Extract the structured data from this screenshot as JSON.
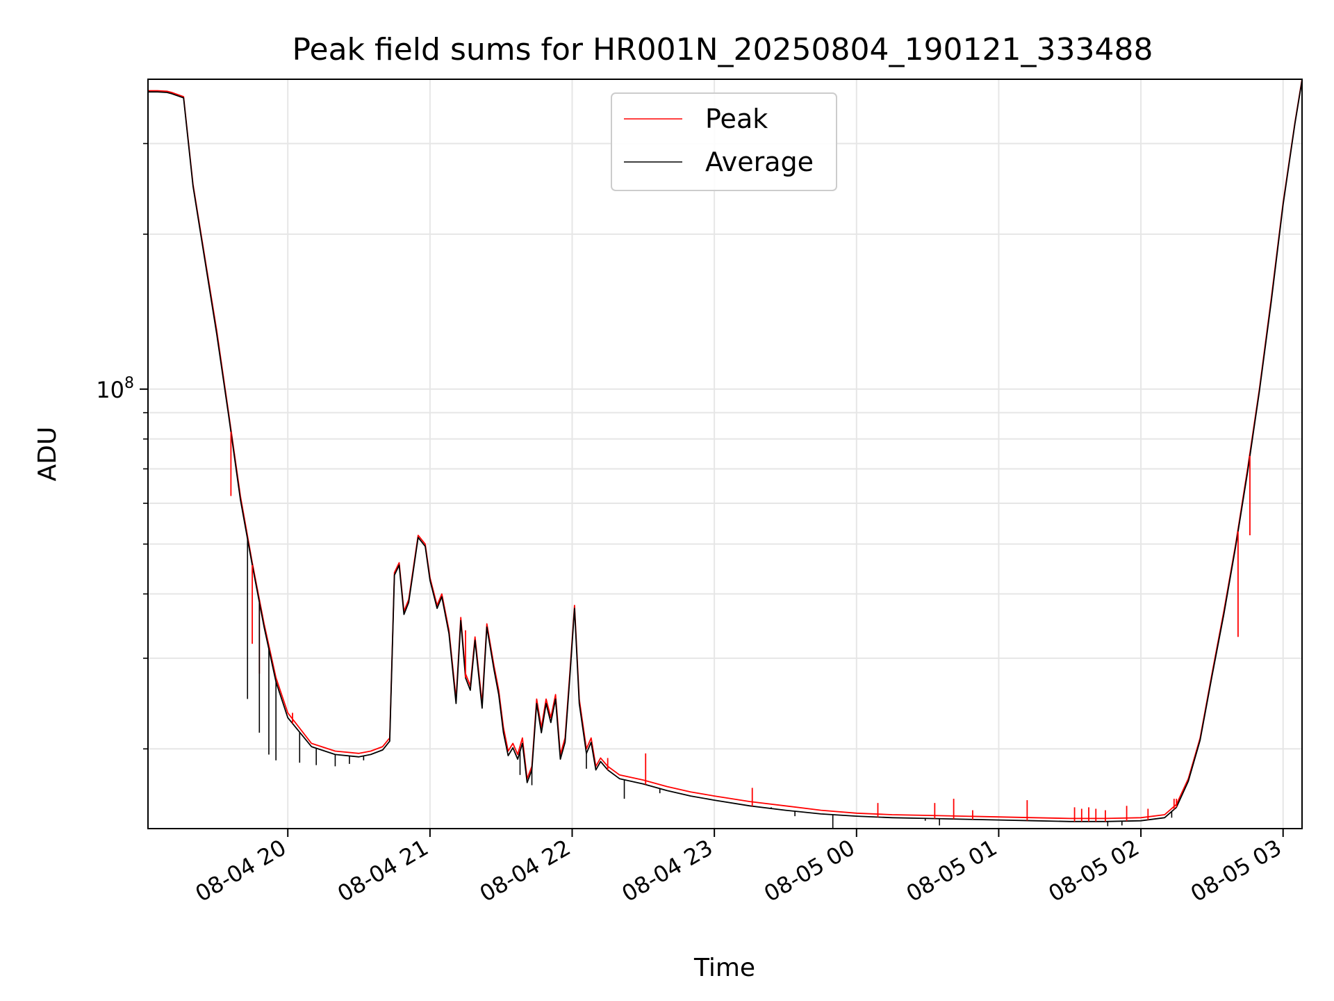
{
  "chart_data": {
    "type": "line",
    "title": "Peak field sums for HR001N_20250804_190121_333488",
    "xlabel": "Time",
    "ylabel": "ADU",
    "y_scale": "log",
    "grid": true,
    "legend_placement": "upper center",
    "x_range": [
      "08-04 19:01",
      "08-05 03:08"
    ],
    "y_range": [
      14000000,
      400000000
    ],
    "x_ticks": [
      {
        "time": "08-04 20:00",
        "label": "08-04 20"
      },
      {
        "time": "08-04 21:00",
        "label": "08-04 21"
      },
      {
        "time": "08-04 22:00",
        "label": "08-04 22"
      },
      {
        "time": "08-04 23:00",
        "label": "08-04 23"
      },
      {
        "time": "08-05 00:00",
        "label": "08-05 00"
      },
      {
        "time": "08-05 01:00",
        "label": "08-05 01"
      },
      {
        "time": "08-05 02:00",
        "label": "08-05 02"
      },
      {
        "time": "08-05 03:00",
        "label": "08-05 03"
      }
    ],
    "y_major_ticks": [
      {
        "value": 100000000,
        "base": "10",
        "exp": "8"
      }
    ],
    "y_minor_ticks": [
      20000000,
      30000000,
      40000000,
      50000000,
      60000000,
      70000000,
      80000000,
      90000000,
      200000000,
      300000000
    ],
    "series": [
      {
        "name": "Peak",
        "color": "#ff0000",
        "x": [
          "08-04 19:01",
          "08-04 19:05",
          "08-04 19:09",
          "08-04 19:11",
          "08-04 19:16",
          "08-04 19:20",
          "08-04 19:25",
          "08-04 19:30",
          "08-04 19:35",
          "08-04 19:40",
          "08-04 19:45",
          "08-04 19:50",
          "08-04 19:55",
          "08-04 20:00",
          "08-04 20:10",
          "08-04 20:20",
          "08-04 20:30",
          "08-04 20:35",
          "08-04 20:40",
          "08-04 20:43",
          "08-04 20:45",
          "08-04 20:47",
          "08-04 20:49",
          "08-04 20:51",
          "08-04 20:53",
          "08-04 20:55",
          "08-04 20:58",
          "08-04 21:00",
          "08-04 21:03",
          "08-04 21:05",
          "08-04 21:08",
          "08-04 21:11",
          "08-04 21:13",
          "08-04 21:15",
          "08-04 21:17",
          "08-04 21:19",
          "08-04 21:22",
          "08-04 21:24",
          "08-04 21:27",
          "08-04 21:29",
          "08-04 21:31",
          "08-04 21:33",
          "08-04 21:35",
          "08-04 21:37",
          "08-04 21:39",
          "08-04 21:41",
          "08-04 21:43",
          "08-04 21:45",
          "08-04 21:47",
          "08-04 21:49",
          "08-04 21:51",
          "08-04 21:53",
          "08-04 21:55",
          "08-04 21:57",
          "08-04 21:59",
          "08-04 22:01",
          "08-04 22:03",
          "08-04 22:06",
          "08-04 22:08",
          "08-04 22:10",
          "08-04 22:12",
          "08-04 22:15",
          "08-04 22:20",
          "08-04 22:30",
          "08-04 22:40",
          "08-04 22:50",
          "08-04 23:00",
          "08-04 23:15",
          "08-04 23:30",
          "08-04 23:45",
          "08-05 00:00",
          "08-05 00:15",
          "08-05 00:30",
          "08-05 00:45",
          "08-05 01:00",
          "08-05 01:15",
          "08-05 01:30",
          "08-05 01:45",
          "08-05 02:00",
          "08-05 02:10",
          "08-05 02:15",
          "08-05 02:20",
          "08-05 02:25",
          "08-05 02:30",
          "08-05 02:35",
          "08-05 02:40",
          "08-05 02:45",
          "08-05 02:50",
          "08-05 02:55",
          "08-05 03:00",
          "08-05 03:05",
          "08-05 03:08"
        ],
        "y": [
          380000000,
          380000000,
          379000000,
          377000000,
          370000000,
          250000000,
          180000000,
          130000000,
          90000000,
          62000000,
          46000000,
          35000000,
          27500000,
          23500000,
          20500000,
          19800000,
          19600000,
          19800000,
          20200000,
          21000000,
          44000000,
          46000000,
          37000000,
          39000000,
          45000000,
          52000000,
          50000000,
          43000000,
          38000000,
          40000000,
          34000000,
          25000000,
          36000000,
          28000000,
          26500000,
          33000000,
          24500000,
          35000000,
          29000000,
          26000000,
          22000000,
          19800000,
          20500000,
          19500000,
          21000000,
          17500000,
          18500000,
          25000000,
          22000000,
          25000000,
          23000000,
          25500000,
          19500000,
          21000000,
          28000000,
          38000000,
          25000000,
          20000000,
          21000000,
          18500000,
          19200000,
          18500000,
          17800000,
          17400000,
          16900000,
          16500000,
          16200000,
          15800000,
          15500000,
          15200000,
          15000000,
          14900000,
          14850000,
          14800000,
          14750000,
          14700000,
          14650000,
          14650000,
          14700000,
          14900000,
          15600000,
          17500000,
          21000000,
          28000000,
          37000000,
          50000000,
          70000000,
          100000000,
          150000000,
          230000000,
          330000000,
          400000000
        ]
      },
      {
        "name": "Average",
        "color": "#000000",
        "x": [
          "08-04 19:01",
          "08-04 19:05",
          "08-04 19:09",
          "08-04 19:11",
          "08-04 19:16",
          "08-04 19:20",
          "08-04 19:25",
          "08-04 19:30",
          "08-04 19:35",
          "08-04 19:40",
          "08-04 19:45",
          "08-04 19:50",
          "08-04 19:55",
          "08-04 20:00",
          "08-04 20:10",
          "08-04 20:20",
          "08-04 20:30",
          "08-04 20:35",
          "08-04 20:40",
          "08-04 20:43",
          "08-04 20:45",
          "08-04 20:47",
          "08-04 20:49",
          "08-04 20:51",
          "08-04 20:53",
          "08-04 20:55",
          "08-04 20:58",
          "08-04 21:00",
          "08-04 21:03",
          "08-04 21:05",
          "08-04 21:08",
          "08-04 21:11",
          "08-04 21:13",
          "08-04 21:15",
          "08-04 21:17",
          "08-04 21:19",
          "08-04 21:22",
          "08-04 21:24",
          "08-04 21:27",
          "08-04 21:29",
          "08-04 21:31",
          "08-04 21:33",
          "08-04 21:35",
          "08-04 21:37",
          "08-04 21:39",
          "08-04 21:41",
          "08-04 21:43",
          "08-04 21:45",
          "08-04 21:47",
          "08-04 21:49",
          "08-04 21:51",
          "08-04 21:53",
          "08-04 21:55",
          "08-04 21:57",
          "08-04 21:59",
          "08-04 22:01",
          "08-04 22:03",
          "08-04 22:06",
          "08-04 22:08",
          "08-04 22:10",
          "08-04 22:12",
          "08-04 22:15",
          "08-04 22:20",
          "08-04 22:30",
          "08-04 22:40",
          "08-04 22:50",
          "08-04 23:00",
          "08-04 23:15",
          "08-04 23:30",
          "08-04 23:45",
          "08-05 00:00",
          "08-05 00:15",
          "08-05 00:30",
          "08-05 00:45",
          "08-05 01:00",
          "08-05 01:15",
          "08-05 01:30",
          "08-05 01:45",
          "08-05 02:00",
          "08-05 02:10",
          "08-05 02:15",
          "08-05 02:20",
          "08-05 02:25",
          "08-05 02:30",
          "08-05 02:35",
          "08-05 02:40",
          "08-05 02:45",
          "08-05 02:50",
          "08-05 02:55",
          "08-05 03:00",
          "08-05 03:05",
          "08-05 03:08"
        ],
        "y": [
          378000000,
          378000000,
          377000000,
          375000000,
          368000000,
          248000000,
          178000000,
          128000000,
          89000000,
          61000000,
          45500000,
          34500000,
          27000000,
          23000000,
          20200000,
          19500000,
          19300000,
          19500000,
          19900000,
          20700000,
          43500000,
          45500000,
          36500000,
          38500000,
          44500000,
          51500000,
          49500000,
          42500000,
          37500000,
          39500000,
          33500000,
          24500000,
          35500000,
          27500000,
          26000000,
          32500000,
          24000000,
          34500000,
          28500000,
          25500000,
          21500000,
          19400000,
          20100000,
          19100000,
          20500000,
          17200000,
          18200000,
          24500000,
          21500000,
          24500000,
          22500000,
          25000000,
          19100000,
          20600000,
          27500000,
          37500000,
          24500000,
          19600000,
          20600000,
          18200000,
          18900000,
          18200000,
          17500000,
          17100000,
          16600000,
          16200000,
          15900000,
          15500000,
          15200000,
          14950000,
          14800000,
          14700000,
          14650000,
          14600000,
          14550000,
          14500000,
          14450000,
          14450000,
          14500000,
          14700000,
          15400000,
          17300000,
          20800000,
          27700000,
          36500000,
          49500000,
          69000000,
          99000000,
          148000000,
          228000000,
          328000000,
          398000000
        ]
      }
    ],
    "peak_spikes": [
      {
        "x": "08-04 19:36",
        "y": 62000000
      },
      {
        "x": "08-04 19:45",
        "y": 32000000
      },
      {
        "x": "08-04 19:48",
        "y": 28000000
      },
      {
        "x": "08-04 20:02",
        "y": 23500000
      },
      {
        "x": "08-04 21:15",
        "y": 34000000
      },
      {
        "x": "08-04 22:15",
        "y": 19200000
      },
      {
        "x": "08-04 22:31",
        "y": 19600000
      },
      {
        "x": "08-04 23:16",
        "y": 16800000
      },
      {
        "x": "08-05 00:09",
        "y": 15700000
      },
      {
        "x": "08-05 00:33",
        "y": 15700000
      },
      {
        "x": "08-05 00:41",
        "y": 16000000
      },
      {
        "x": "08-05 00:49",
        "y": 15200000
      },
      {
        "x": "08-05 01:12",
        "y": 15900000
      },
      {
        "x": "08-05 01:32",
        "y": 15400000
      },
      {
        "x": "08-05 01:35",
        "y": 15300000
      },
      {
        "x": "08-05 01:38",
        "y": 15400000
      },
      {
        "x": "08-05 01:41",
        "y": 15300000
      },
      {
        "x": "08-05 01:45",
        "y": 15200000
      },
      {
        "x": "08-05 01:54",
        "y": 15500000
      },
      {
        "x": "08-05 02:03",
        "y": 15300000
      },
      {
        "x": "08-05 02:14",
        "y": 16000000
      },
      {
        "x": "08-05 02:15",
        "y": 16000000
      },
      {
        "x": "08-05 02:41",
        "y": 33000000
      },
      {
        "x": "08-05 02:46",
        "y": 52000000
      }
    ],
    "average_dips": [
      {
        "x": "08-04 19:43",
        "y": 25000000
      },
      {
        "x": "08-04 19:48",
        "y": 21500000
      },
      {
        "x": "08-04 19:52",
        "y": 19500000
      },
      {
        "x": "08-04 19:55",
        "y": 19000000
      },
      {
        "x": "08-04 20:05",
        "y": 18800000
      },
      {
        "x": "08-04 20:12",
        "y": 18600000
      },
      {
        "x": "08-04 20:20",
        "y": 18500000
      },
      {
        "x": "08-04 20:26",
        "y": 18700000
      },
      {
        "x": "08-04 20:32",
        "y": 19000000
      },
      {
        "x": "08-04 21:38",
        "y": 17800000
      },
      {
        "x": "08-04 21:43",
        "y": 17000000
      },
      {
        "x": "08-04 22:06",
        "y": 18300000
      },
      {
        "x": "08-04 22:22",
        "y": 16000000
      },
      {
        "x": "08-04 22:37",
        "y": 16400000
      },
      {
        "x": "08-04 23:24",
        "y": 15400000
      },
      {
        "x": "08-04 23:34",
        "y": 14800000
      },
      {
        "x": "08-04 23:50",
        "y": 14000000
      },
      {
        "x": "08-05 00:29",
        "y": 14500000
      },
      {
        "x": "08-05 00:35",
        "y": 14200000
      },
      {
        "x": "08-05 01:20",
        "y": 14450000
      },
      {
        "x": "08-05 01:46",
        "y": 14150000
      },
      {
        "x": "08-05 01:52",
        "y": 14200000
      },
      {
        "x": "08-05 02:13",
        "y": 14700000
      }
    ]
  }
}
